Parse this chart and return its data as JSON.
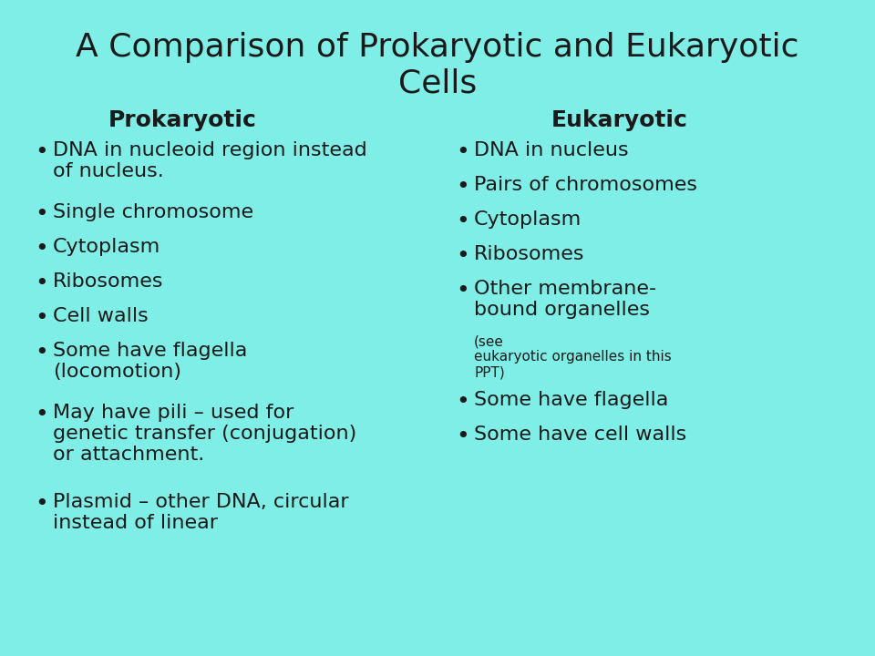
{
  "title": "A Comparison of Prokaryotic and Eukaryotic\nCells",
  "background_color": "#7FEEE6",
  "title_fontsize": 26,
  "title_color": "#1a1a1a",
  "header_fontsize": 18,
  "body_fontsize": 16,
  "small_fontsize": 11,
  "left_header": "Prokaryotic",
  "right_header": "Eukaryotic",
  "left_items": [
    {
      "main": "DNA in nucleoid region instead\nof nucleus.",
      "small": null
    },
    {
      "main": "Single chromosome",
      "small": null
    },
    {
      "main": "Cytoplasm",
      "small": null
    },
    {
      "main": "Ribosomes",
      "small": null
    },
    {
      "main": "Cell walls",
      "small": null
    },
    {
      "main": "Some have flagella\n(locomotion)",
      "small": null
    },
    {
      "main": "May have pili – used for\ngenetic transfer (conjugation)\nor attachment.",
      "small": null
    },
    {
      "main": "Plasmid – other DNA, circular\ninstead of linear",
      "small": null
    }
  ],
  "right_items": [
    {
      "main": "DNA in nucleus",
      "small": null
    },
    {
      "main": "Pairs of chromosomes",
      "small": null
    },
    {
      "main": "Cytoplasm",
      "small": null
    },
    {
      "main": "Ribosomes",
      "small": null
    },
    {
      "main": "Other membrane-\nbound organelles",
      "small": "(see\neukaryotic organelles in this\nPPT)"
    },
    {
      "main": "Some have flagella",
      "small": null
    },
    {
      "main": "Some have cell walls",
      "small": null
    }
  ]
}
